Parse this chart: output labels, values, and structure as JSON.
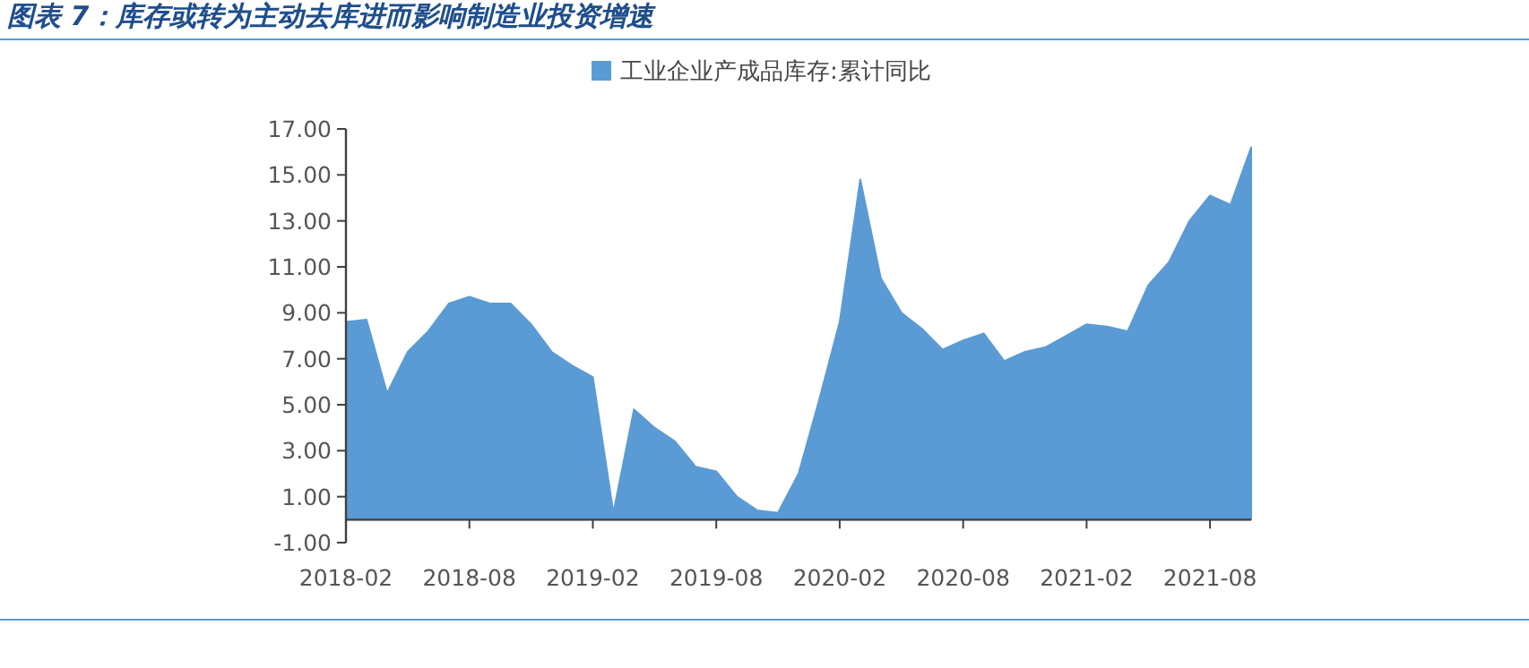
{
  "chart_data": {
    "type": "area",
    "title": "图表 7：库存或转为主动去库进而影响制造业投资增速",
    "legend": "top",
    "x": [
      "2018-02",
      "2018-03",
      "2018-04",
      "2018-05",
      "2018-06",
      "2018-07",
      "2018-08",
      "2018-09",
      "2018-10",
      "2018-11",
      "2018-12",
      "2019-01",
      "2019-02",
      "2019-03",
      "2019-04",
      "2019-05",
      "2019-06",
      "2019-07",
      "2019-08",
      "2019-09",
      "2019-10",
      "2019-11",
      "2019-12",
      "2020-01",
      "2020-02",
      "2020-03",
      "2020-04",
      "2020-05",
      "2020-06",
      "2020-07",
      "2020-08",
      "2020-09",
      "2020-10",
      "2020-11",
      "2020-12",
      "2021-01",
      "2021-02",
      "2021-03",
      "2021-04",
      "2021-05",
      "2021-06",
      "2021-07",
      "2021-08",
      "2021-09",
      "2021-10"
    ],
    "series": [
      {
        "name": "工业企业产成品库存:累计同比",
        "color": "#5b9bd5",
        "values": [
          8.6,
          8.7,
          5.5,
          7.3,
          8.2,
          9.4,
          9.7,
          9.4,
          9.4,
          8.5,
          7.3,
          6.7,
          6.2,
          0.3,
          4.8,
          4.0,
          3.4,
          2.3,
          2.1,
          1.0,
          0.4,
          0.3,
          2.0,
          5.2,
          8.6,
          14.8,
          10.5,
          9.0,
          8.3,
          7.4,
          7.8,
          8.1,
          6.9,
          7.3,
          7.5,
          8.0,
          8.5,
          8.4,
          8.2,
          10.2,
          11.2,
          13.0,
          14.1,
          13.7,
          16.2
        ]
      }
    ],
    "xlim": [
      "2018-02",
      "2021-10"
    ],
    "xticks": [
      "2018-02",
      "2018-08",
      "2019-02",
      "2019-08",
      "2020-02",
      "2020-08",
      "2021-02",
      "2021-08"
    ],
    "ylim": [
      -1,
      17
    ],
    "yticks": [
      {
        "value": -1,
        "label": "-1.00"
      },
      {
        "value": 1,
        "label": "1.00"
      },
      {
        "value": 3,
        "label": "3.00"
      },
      {
        "value": 5,
        "label": "5.00"
      },
      {
        "value": 7,
        "label": "7.00"
      },
      {
        "value": 9,
        "label": "9.00"
      },
      {
        "value": 11,
        "label": "11.00"
      },
      {
        "value": 13,
        "label": "13.00"
      },
      {
        "value": 15,
        "label": "15.00"
      },
      {
        "value": 17,
        "label": "17.00"
      }
    ]
  }
}
